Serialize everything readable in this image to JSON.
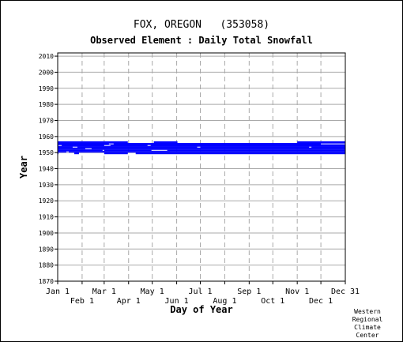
{
  "header": {
    "title": "FOX, OREGON   (353058)",
    "subtitle": "Observed Element : Daily Total Snowfall"
  },
  "credit": [
    "Western",
    "Regional",
    "Climate",
    "Center"
  ],
  "colors": {
    "data": "#0000ff",
    "grid": "#a9a9a9",
    "axis": "#000000",
    "background": "#ffffff"
  },
  "chart_data": {
    "type": "heatmap",
    "title": "FOX, OREGON   (353058)",
    "subtitle": "Observed Element : Daily Total Snowfall",
    "xlabel": "Day of Year",
    "ylabel": "Year",
    "xlim": [
      1,
      366
    ],
    "ylim": [
      1870,
      2012
    ],
    "yticks": [
      1870,
      1880,
      1890,
      1900,
      1910,
      1920,
      1930,
      1940,
      1950,
      1960,
      1970,
      1980,
      1990,
      2000,
      2010
    ],
    "xticks_upper": [
      {
        "label": "Jan 1",
        "day": 1
      },
      {
        "label": "Mar 1",
        "day": 60
      },
      {
        "label": "May 1",
        "day": 121
      },
      {
        "label": "Jul 1",
        "day": 182
      },
      {
        "label": "Sep 1",
        "day": 244
      },
      {
        "label": "Nov 1",
        "day": 305
      },
      {
        "label": "Dec 31",
        "day": 366
      }
    ],
    "xticks_lower": [
      {
        "label": "Feb 1",
        "day": 32
      },
      {
        "label": "Apr 1",
        "day": 91
      },
      {
        "label": "Jun 1",
        "day": 152
      },
      {
        "label": "Aug 1",
        "day": 213
      },
      {
        "label": "Oct 1",
        "day": 274
      },
      {
        "label": "Dec 1",
        "day": 335
      }
    ],
    "grid": true,
    "coverage": [
      {
        "year": 1949,
        "start_day": 1,
        "end_day": 2
      },
      {
        "year": 1949,
        "start_day": 22,
        "end_day": 28
      },
      {
        "year": 1949,
        "start_day": 60,
        "end_day": 90
      },
      {
        "year": 1949,
        "start_day": 100,
        "end_day": 366
      },
      {
        "year": 1950,
        "start_day": 1,
        "end_day": 366
      },
      {
        "year": 1951,
        "start_day": 1,
        "end_day": 366
      },
      {
        "year": 1952,
        "start_day": 1,
        "end_day": 366
      },
      {
        "year": 1953,
        "start_day": 1,
        "end_day": 366
      },
      {
        "year": 1954,
        "start_day": 1,
        "end_day": 366
      },
      {
        "year": 1955,
        "start_day": 1,
        "end_day": 366
      },
      {
        "year": 1956,
        "start_day": 1,
        "end_day": 90
      },
      {
        "year": 1956,
        "start_day": 123,
        "end_day": 153
      },
      {
        "year": 1956,
        "start_day": 305,
        "end_day": 366
      }
    ],
    "gaps": [
      {
        "year": 1949,
        "start_day": 8,
        "end_day": 12
      },
      {
        "year": 1950,
        "start_day": 12,
        "end_day": 15
      },
      {
        "year": 1951,
        "start_day": 58,
        "end_day": 60
      },
      {
        "year": 1951,
        "start_day": 120,
        "end_day": 140
      },
      {
        "year": 1952,
        "start_day": 36,
        "end_day": 44
      },
      {
        "year": 1953,
        "start_day": 20,
        "end_day": 26
      },
      {
        "year": 1953,
        "start_day": 178,
        "end_day": 182
      },
      {
        "year": 1953,
        "start_day": 320,
        "end_day": 323
      },
      {
        "year": 1954,
        "start_day": 2,
        "end_day": 6
      },
      {
        "year": 1954,
        "start_day": 60,
        "end_day": 68
      },
      {
        "year": 1954,
        "start_day": 115,
        "end_day": 119
      },
      {
        "year": 1955,
        "start_day": 66,
        "end_day": 72
      },
      {
        "year": 1955,
        "start_day": 335,
        "end_day": 366
      }
    ]
  }
}
